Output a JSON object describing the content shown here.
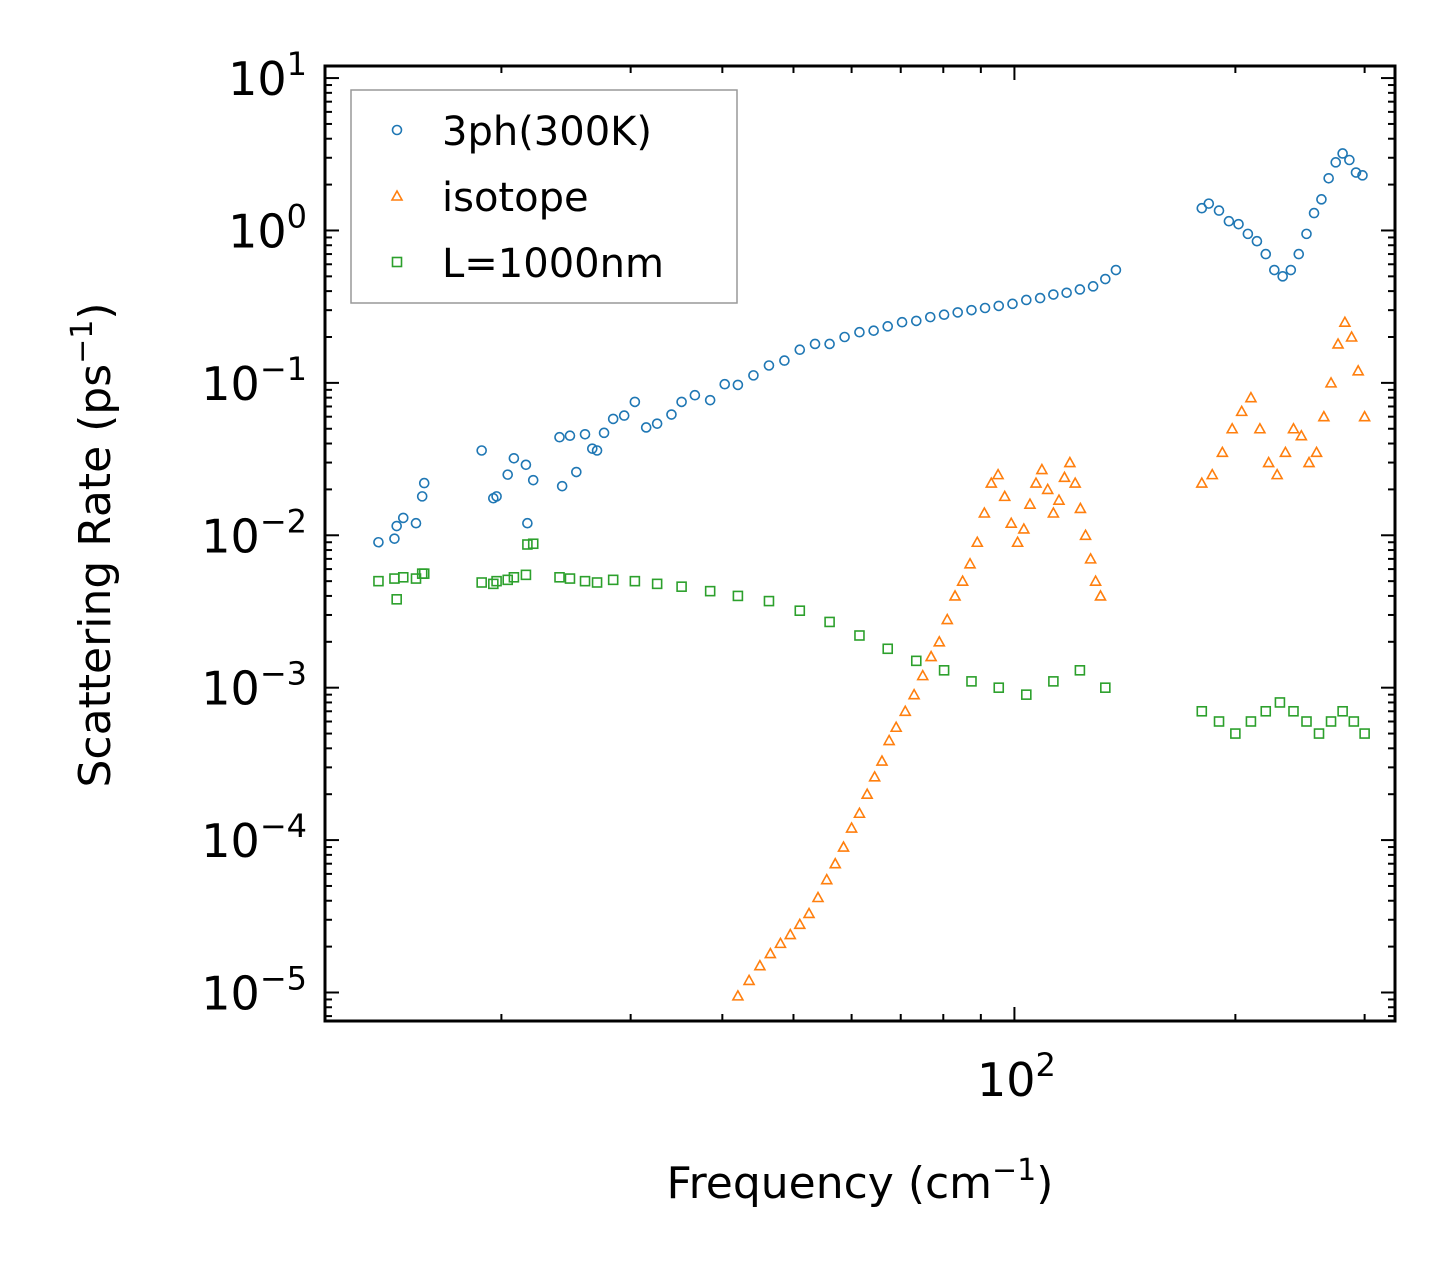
{
  "chart_data": {
    "type": "scatter",
    "xscale": "log",
    "yscale": "log",
    "xlim": [
      11.5,
      330
    ],
    "ylim": [
      6.5e-06,
      12
    ],
    "xlabel": {
      "base": "Frequency (cm",
      "sup": "−1",
      "close": ")"
    },
    "ylabel": {
      "base": "Scattering Rate (ps",
      "sup": "−1",
      "close": ")"
    },
    "x_major_ticks": [
      {
        "value": 100,
        "base": "10",
        "exp": "2"
      }
    ],
    "y_major_ticks": [
      {
        "value": 10,
        "base": "10",
        "exp": "1"
      },
      {
        "value": 1,
        "base": "10",
        "exp": "0"
      },
      {
        "value": 0.1,
        "base": "10",
        "exp": "−1"
      },
      {
        "value": 0.01,
        "base": "10",
        "exp": "−2"
      },
      {
        "value": 0.001,
        "base": "10",
        "exp": "−3"
      },
      {
        "value": 0.0001,
        "base": "10",
        "exp": "−4"
      },
      {
        "value": 1e-05,
        "base": "10",
        "exp": "−5"
      }
    ],
    "legend_position": "top-left",
    "series": [
      {
        "name": "3ph(300K)",
        "marker": "circle",
        "color": "#1f77b4",
        "x": [
          13.6,
          14.3,
          14.4,
          14.7,
          15.3,
          15.6,
          15.7,
          18.8,
          19.5,
          19.7,
          20.4,
          20.8,
          21.6,
          21.7,
          22.1,
          24.0,
          24.2,
          24.8,
          25.3,
          26.0,
          26.6,
          27.0,
          27.6,
          28.4,
          29.4,
          30.4,
          31.5,
          32.6,
          34.1,
          35.2,
          36.7,
          38.5,
          40.3,
          42.0,
          44.1,
          46.3,
          48.6,
          51.0,
          53.5,
          56.0,
          58.7,
          61.5,
          64.3,
          67.2,
          70.3,
          73.5,
          76.8,
          80.2,
          83.7,
          87.4,
          91.2,
          95.2,
          99.4,
          103.8,
          108.4,
          113.0,
          117.8,
          122.8,
          128.0,
          133.0,
          137.5,
          180.0,
          184.0,
          190.0,
          196.0,
          202.0,
          208.0,
          214.0,
          220.0,
          226.0,
          232.0,
          238.0,
          244.0,
          250.0,
          256.0,
          262.0,
          268.0,
          274.0,
          280.0,
          286.0,
          292.0,
          298.0
        ],
        "y": [
          0.009,
          0.0095,
          0.0115,
          0.013,
          0.012,
          0.018,
          0.022,
          0.036,
          0.0175,
          0.018,
          0.025,
          0.032,
          0.029,
          0.012,
          0.023,
          0.044,
          0.021,
          0.045,
          0.026,
          0.046,
          0.037,
          0.036,
          0.047,
          0.058,
          0.061,
          0.075,
          0.051,
          0.054,
          0.062,
          0.075,
          0.083,
          0.077,
          0.098,
          0.097,
          0.112,
          0.13,
          0.14,
          0.165,
          0.18,
          0.18,
          0.2,
          0.215,
          0.22,
          0.235,
          0.25,
          0.255,
          0.27,
          0.28,
          0.29,
          0.3,
          0.31,
          0.32,
          0.33,
          0.35,
          0.36,
          0.38,
          0.39,
          0.41,
          0.43,
          0.48,
          0.55,
          1.4,
          1.5,
          1.35,
          1.15,
          1.1,
          0.95,
          0.85,
          0.7,
          0.55,
          0.5,
          0.55,
          0.7,
          0.95,
          1.3,
          1.6,
          2.2,
          2.8,
          3.2,
          2.9,
          2.4,
          2.3
        ]
      },
      {
        "name": "isotope",
        "marker": "triangle",
        "color": "#ff7f0e",
        "x": [
          42.0,
          43.5,
          45.0,
          46.5,
          48.0,
          49.5,
          51.0,
          52.5,
          54.0,
          55.5,
          57.0,
          58.5,
          60.0,
          61.5,
          63.0,
          64.5,
          66.0,
          67.5,
          69.0,
          71.0,
          73.0,
          75.0,
          77.0,
          79.0,
          81.0,
          83.0,
          85.0,
          87.0,
          89.0,
          91.0,
          93.0,
          95.0,
          97.0,
          99.0,
          101.0,
          103.0,
          105.0,
          107.0,
          109.0,
          111.0,
          113.0,
          115.0,
          117.0,
          119.0,
          121.0,
          123.0,
          125.0,
          127.0,
          129.0,
          131.0,
          180.0,
          186.0,
          192.0,
          198.0,
          204.0,
          210.0,
          216.0,
          222.0,
          228.0,
          234.0,
          240.0,
          246.0,
          252.0,
          258.0,
          264.0,
          270.0,
          276.0,
          282.0,
          288.0,
          294.0,
          300.0
        ],
        "y": [
          9.5e-06,
          1.2e-05,
          1.5e-05,
          1.8e-05,
          2.1e-05,
          2.4e-05,
          2.8e-05,
          3.3e-05,
          4.2e-05,
          5.5e-05,
          7e-05,
          9e-05,
          0.00012,
          0.00015,
          0.0002,
          0.00026,
          0.00033,
          0.00045,
          0.00055,
          0.0007,
          0.0009,
          0.0012,
          0.0016,
          0.002,
          0.0028,
          0.004,
          0.005,
          0.0065,
          0.009,
          0.014,
          0.022,
          0.025,
          0.018,
          0.012,
          0.009,
          0.011,
          0.016,
          0.022,
          0.027,
          0.02,
          0.014,
          0.017,
          0.024,
          0.03,
          0.022,
          0.015,
          0.01,
          0.007,
          0.005,
          0.004,
          0.022,
          0.025,
          0.035,
          0.05,
          0.065,
          0.08,
          0.05,
          0.03,
          0.025,
          0.035,
          0.05,
          0.045,
          0.03,
          0.035,
          0.06,
          0.1,
          0.18,
          0.25,
          0.2,
          0.12,
          0.06
        ]
      },
      {
        "name": "L=1000nm",
        "marker": "square",
        "color": "#2ca02c",
        "x": [
          13.6,
          14.3,
          14.4,
          14.7,
          15.3,
          15.6,
          15.7,
          18.8,
          19.5,
          19.7,
          20.4,
          20.8,
          21.6,
          21.7,
          22.1,
          24.0,
          24.8,
          26.0,
          27.0,
          28.4,
          30.4,
          32.6,
          35.2,
          38.5,
          42.0,
          46.3,
          51.0,
          56.0,
          61.5,
          67.2,
          73.5,
          80.2,
          87.4,
          95.2,
          103.8,
          113.0,
          122.8,
          133.0,
          180.0,
          190.0,
          200.0,
          210.0,
          220.0,
          230.0,
          240.0,
          250.0,
          260.0,
          270.0,
          280.0,
          290.0,
          300.0
        ],
        "y": [
          0.005,
          0.0052,
          0.0038,
          0.0053,
          0.0052,
          0.0056,
          0.0056,
          0.0049,
          0.0048,
          0.005,
          0.0051,
          0.0053,
          0.0055,
          0.0087,
          0.0088,
          0.0053,
          0.0052,
          0.005,
          0.0049,
          0.0051,
          0.005,
          0.0048,
          0.0046,
          0.0043,
          0.004,
          0.0037,
          0.0032,
          0.0027,
          0.0022,
          0.0018,
          0.0015,
          0.0013,
          0.0011,
          0.001,
          0.0009,
          0.0011,
          0.0013,
          0.001,
          0.0007,
          0.0006,
          0.0005,
          0.0006,
          0.0007,
          0.0008,
          0.0007,
          0.0006,
          0.0005,
          0.0006,
          0.0007,
          0.0006,
          0.0005
        ]
      }
    ]
  }
}
